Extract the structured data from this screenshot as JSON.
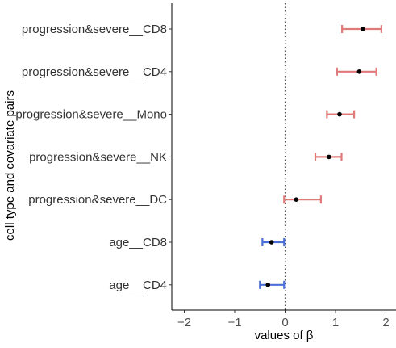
{
  "chart_data": {
    "type": "forest",
    "xlabel": "values of β",
    "ylabel": "cell type and covariate pairs",
    "xlim": [
      -2.3,
      2.1
    ],
    "xticks": [
      -2,
      -1,
      0,
      1,
      2
    ],
    "xtick_labels": [
      "−2",
      "−1",
      "0",
      "1",
      "2"
    ],
    "reference_line": 0,
    "grid": false,
    "legend": "none",
    "colors": {
      "positive": "#E07A7A",
      "negative": "#4A6FD8",
      "point": "#000000"
    },
    "rows": [
      {
        "label": "progression&severe__CD8",
        "estimate": 1.54,
        "lower": 1.13,
        "upper": 1.91,
        "sign": "positive"
      },
      {
        "label": "progression&severe__CD4",
        "estimate": 1.47,
        "lower": 1.03,
        "upper": 1.81,
        "sign": "positive"
      },
      {
        "label": "progression&severe__Mono",
        "estimate": 1.08,
        "lower": 0.83,
        "upper": 1.37,
        "sign": "positive"
      },
      {
        "label": "progression&severe__NK",
        "estimate": 0.87,
        "lower": 0.6,
        "upper": 1.12,
        "sign": "positive"
      },
      {
        "label": "progression&severe__DC",
        "estimate": 0.22,
        "lower": -0.02,
        "upper": 0.71,
        "sign": "positive"
      },
      {
        "label": "age__CD8",
        "estimate": -0.27,
        "lower": -0.45,
        "upper": -0.02,
        "sign": "negative"
      },
      {
        "label": "age__CD4",
        "estimate": -0.34,
        "lower": -0.5,
        "upper": -0.02,
        "sign": "negative"
      }
    ]
  }
}
